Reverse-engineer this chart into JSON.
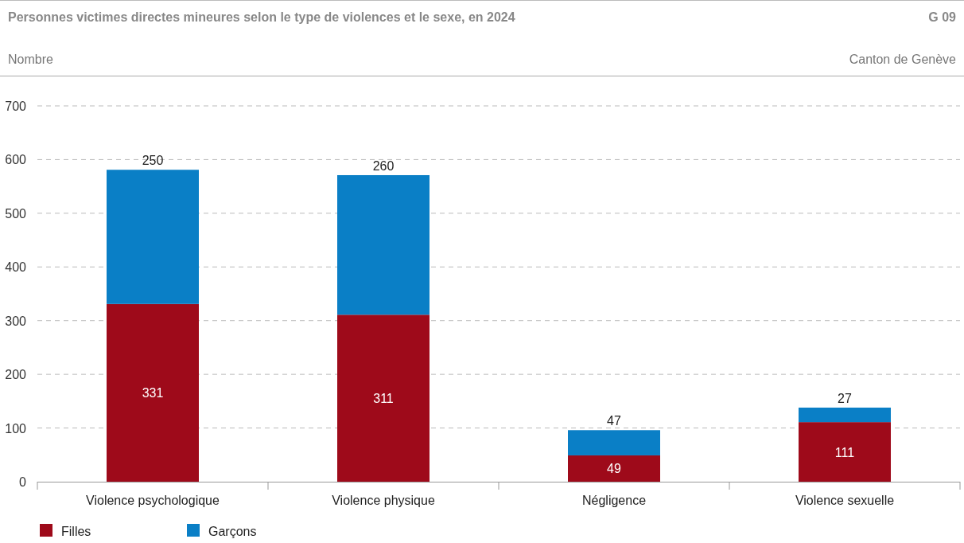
{
  "chart_data": {
    "type": "bar",
    "title": "Personnes victimes directes mineures selon le type de violences et le sexe, en 2024",
    "ylabel": "Nombre",
    "annotations": [
      "G 09",
      "Canton de Genève"
    ],
    "categories": [
      "Violence psychologique",
      "Violence physique",
      "Négligence",
      "Violence sexuelle"
    ],
    "series": [
      {
        "name": "Filles",
        "color": "#9e0a1a",
        "values": [
          331,
          311,
          49,
          111
        ]
      },
      {
        "name": "Garçons",
        "color": "#0a7fc6",
        "values": [
          250,
          260,
          47,
          27
        ]
      }
    ],
    "stacked": true,
    "data_labels": true,
    "ylim": [
      0,
      700
    ],
    "yticks": [
      0,
      100,
      200,
      300,
      400,
      500,
      600,
      700
    ],
    "grid": "y",
    "legend": "bottom left"
  }
}
